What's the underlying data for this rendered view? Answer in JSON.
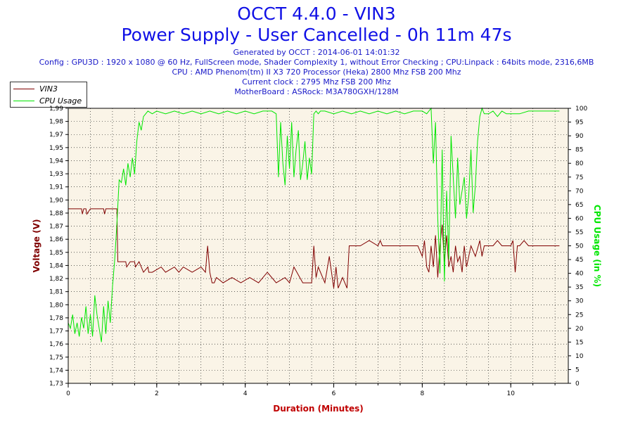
{
  "header": {
    "title": "OCCT 4.4.0 - VIN3",
    "subtitle": "Power Supply - User Cancelled - 0h 11m 47s",
    "info_lines": [
      "Generated by OCCT : 2014-06-01 14:01:32",
      "Config : GPU3D : 1920 x 1080 @ 60 Hz, FullScreen mode, Shader Complexity 1, without Error Checking ; CPU:Linpack : 64bits mode, 2316,6MB",
      "CPU : AMD Phenom(tm) II X3 720 Processor (Heka) 2800 Mhz FSB 200 Mhz",
      "Current clock : 2795 Mhz FSB 200 Mhz",
      "MotherBoard : ASRock: M3A780GXH/128M"
    ]
  },
  "legend": [
    {
      "label": "VIN3",
      "color": "#800000"
    },
    {
      "label": "CPU Usage",
      "color": "#00e600"
    }
  ],
  "colors": {
    "plot_background": "#faf4e7",
    "vin3": "#800000",
    "cpu": "#00e600",
    "title": "#1010e6",
    "xlabel": "#c00000"
  },
  "chart_data": {
    "type": "line",
    "title": "OCCT 4.4.0 - VIN3",
    "xlabel": "Duration (Minutes)",
    "ylabel": "Voltage (V)",
    "y2label": "CPU Usage (in %)",
    "xlim": [
      0,
      11.3
    ],
    "ylim": [
      1.73,
      1.99
    ],
    "y2lim": [
      0,
      100
    ],
    "x_ticks": [
      "0",
      "2",
      "4",
      "6",
      "8",
      "10"
    ],
    "y_ticks": [
      "1,73",
      "1,74",
      "1,75",
      "1,76",
      "1,77",
      "1,78",
      "1,80",
      "1,81",
      "1,82",
      "1,84",
      "1,85",
      "1,86",
      "1,87",
      "1,88",
      "1,90",
      "1,91",
      "1,93",
      "1,94",
      "1,95",
      "1,97",
      "1,98",
      "1,99"
    ],
    "y2_ticks": [
      "0",
      "5",
      "10",
      "15",
      "20",
      "25",
      "30",
      "35",
      "40",
      "45",
      "50",
      "55",
      "60",
      "65",
      "70",
      "75",
      "80",
      "85",
      "90",
      "95",
      "100"
    ],
    "grid": true,
    "legend_position": "top-left",
    "series": [
      {
        "name": "VIN3",
        "axis": "left",
        "x": [
          0,
          0.05,
          0.3,
          0.32,
          0.35,
          0.4,
          0.42,
          0.5,
          0.8,
          0.82,
          0.85,
          1.05,
          1.1,
          1.12,
          1.15,
          1.3,
          1.32,
          1.4,
          1.5,
          1.52,
          1.6,
          1.7,
          1.8,
          1.82,
          1.9,
          2.1,
          2.2,
          2.4,
          2.5,
          2.6,
          2.8,
          3.0,
          3.1,
          3.15,
          3.2,
          3.25,
          3.3,
          3.35,
          3.5,
          3.7,
          3.9,
          4.1,
          4.3,
          4.5,
          4.7,
          4.9,
          5.0,
          5.1,
          5.3,
          5.5,
          5.55,
          5.6,
          5.65,
          5.8,
          5.9,
          6.0,
          6.05,
          6.1,
          6.2,
          6.3,
          6.35,
          6.4,
          6.5,
          6.6,
          6.8,
          7.0,
          7.05,
          7.1,
          7.2,
          7.3,
          7.5,
          7.9,
          8.0,
          8.05,
          8.1,
          8.15,
          8.2,
          8.25,
          8.3,
          8.35,
          8.4,
          8.45,
          8.5,
          8.55,
          8.6,
          8.65,
          8.7,
          8.75,
          8.8,
          8.85,
          8.9,
          8.95,
          9.0,
          9.1,
          9.2,
          9.3,
          9.35,
          9.4,
          9.5,
          9.6,
          9.7,
          9.8,
          9.9,
          10.0,
          10.05,
          10.1,
          10.15,
          10.2,
          10.3,
          10.4,
          10.5,
          11.1
        ],
        "y": [
          1.895,
          1.895,
          1.895,
          1.89,
          1.895,
          1.895,
          1.89,
          1.895,
          1.895,
          1.89,
          1.895,
          1.895,
          1.895,
          1.845,
          1.845,
          1.845,
          1.84,
          1.845,
          1.845,
          1.84,
          1.845,
          1.835,
          1.84,
          1.835,
          1.835,
          1.84,
          1.835,
          1.84,
          1.835,
          1.84,
          1.835,
          1.84,
          1.835,
          1.86,
          1.835,
          1.825,
          1.825,
          1.83,
          1.825,
          1.83,
          1.825,
          1.83,
          1.825,
          1.835,
          1.825,
          1.83,
          1.825,
          1.84,
          1.825,
          1.825,
          1.86,
          1.83,
          1.84,
          1.825,
          1.85,
          1.82,
          1.84,
          1.82,
          1.83,
          1.82,
          1.86,
          1.86,
          1.86,
          1.86,
          1.865,
          1.86,
          1.865,
          1.86,
          1.86,
          1.86,
          1.86,
          1.86,
          1.85,
          1.865,
          1.84,
          1.835,
          1.86,
          1.84,
          1.87,
          1.83,
          1.86,
          1.88,
          1.845,
          1.87,
          1.84,
          1.85,
          1.835,
          1.86,
          1.845,
          1.85,
          1.835,
          1.86,
          1.84,
          1.86,
          1.85,
          1.865,
          1.85,
          1.86,
          1.86,
          1.86,
          1.865,
          1.86,
          1.86,
          1.86,
          1.865,
          1.835,
          1.86,
          1.86,
          1.865,
          1.86,
          1.86,
          1.86
        ]
      },
      {
        "name": "CPU Usage",
        "axis": "right",
        "x": [
          0,
          0.05,
          0.1,
          0.15,
          0.2,
          0.25,
          0.3,
          0.35,
          0.4,
          0.45,
          0.5,
          0.55,
          0.6,
          0.65,
          0.7,
          0.75,
          0.8,
          0.85,
          0.9,
          0.95,
          1.0,
          1.05,
          1.1,
          1.15,
          1.2,
          1.25,
          1.3,
          1.35,
          1.4,
          1.45,
          1.5,
          1.55,
          1.6,
          1.65,
          1.7,
          1.8,
          1.9,
          2.0,
          2.2,
          2.4,
          2.6,
          2.8,
          3.0,
          3.2,
          3.4,
          3.6,
          3.8,
          4.0,
          4.2,
          4.4,
          4.6,
          4.7,
          4.75,
          4.8,
          4.85,
          4.9,
          4.95,
          5.0,
          5.05,
          5.1,
          5.15,
          5.2,
          5.25,
          5.3,
          5.35,
          5.4,
          5.45,
          5.5,
          5.55,
          5.6,
          5.65,
          5.7,
          5.8,
          6.0,
          6.2,
          6.4,
          6.6,
          6.8,
          7.0,
          7.2,
          7.4,
          7.6,
          7.8,
          8.0,
          8.1,
          8.2,
          8.25,
          8.3,
          8.35,
          8.4,
          8.45,
          8.5,
          8.55,
          8.6,
          8.65,
          8.7,
          8.75,
          8.8,
          8.85,
          8.9,
          8.95,
          9.0,
          9.05,
          9.1,
          9.15,
          9.2,
          9.25,
          9.3,
          9.35,
          9.4,
          9.5,
          9.6,
          9.7,
          9.8,
          9.9,
          10.0,
          10.2,
          10.4,
          10.6,
          10.8,
          11.0,
          11.1
        ],
        "y": [
          22,
          20,
          25,
          18,
          22,
          17,
          24,
          20,
          28,
          18,
          25,
          17,
          32,
          25,
          20,
          15,
          28,
          18,
          30,
          22,
          35,
          45,
          58,
          74,
          73,
          78,
          72,
          80,
          75,
          82,
          76,
          88,
          95,
          92,
          97,
          99,
          98,
          99,
          98,
          99,
          98,
          99,
          98,
          99,
          98,
          99,
          98,
          99,
          98,
          99,
          99,
          98,
          75,
          95,
          80,
          72,
          90,
          78,
          95,
          75,
          85,
          92,
          74,
          80,
          88,
          74,
          82,
          76,
          98,
          99,
          98,
          99,
          99,
          98,
          99,
          98,
          99,
          98,
          99,
          98,
          99,
          98,
          99,
          99,
          98,
          100,
          80,
          95,
          60,
          40,
          85,
          37,
          70,
          45,
          90,
          75,
          60,
          82,
          65,
          70,
          75,
          60,
          68,
          85,
          62,
          72,
          88,
          97,
          100,
          98,
          98,
          99,
          97,
          99,
          98,
          98,
          98,
          99,
          99,
          99,
          99,
          99
        ]
      }
    ]
  }
}
